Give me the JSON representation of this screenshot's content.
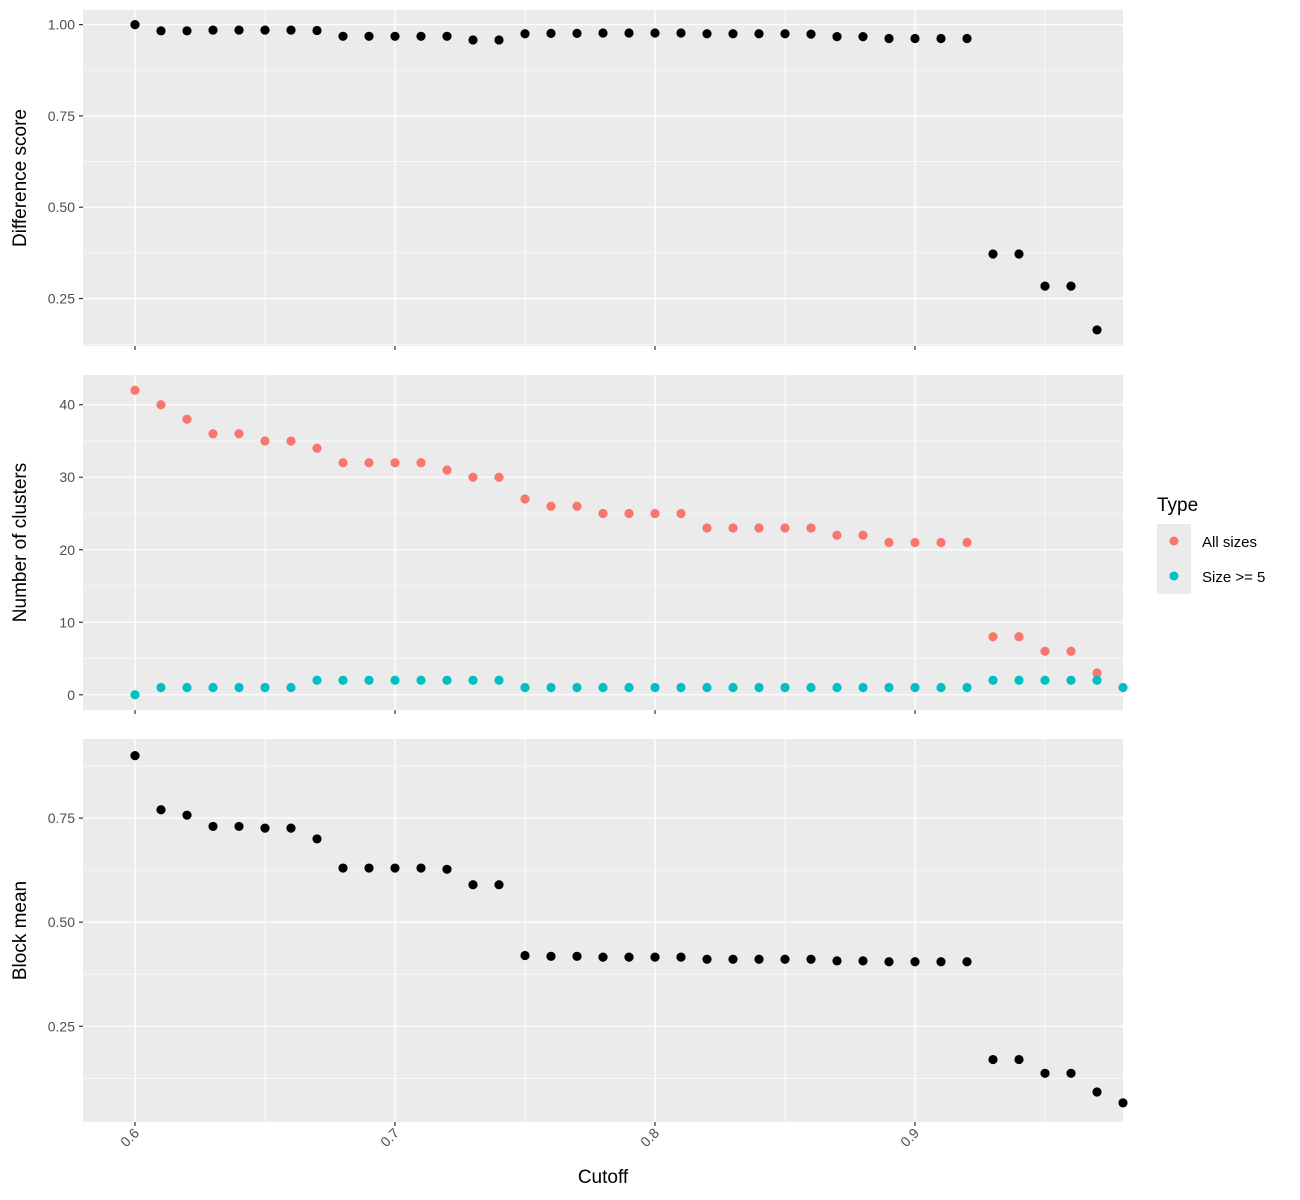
{
  "chart_data": [
    {
      "type": "scatter",
      "ylabel": "Difference score",
      "xlabel": "",
      "xlim": [
        0.58,
        0.98
      ],
      "ylim": [
        0.12,
        1.04
      ],
      "y_ticks": [
        0.25,
        0.5,
        0.75,
        1.0
      ],
      "y_tick_labels": [
        "0.25",
        "0.50",
        "0.75",
        "1.00"
      ],
      "grid": true,
      "series": [
        {
          "color": "#000000",
          "x": [
            0.6,
            0.61,
            0.62,
            0.63,
            0.64,
            0.65,
            0.66,
            0.67,
            0.68,
            0.69,
            0.7,
            0.71,
            0.72,
            0.73,
            0.74,
            0.75,
            0.76,
            0.77,
            0.78,
            0.79,
            0.8,
            0.81,
            0.82,
            0.83,
            0.84,
            0.85,
            0.86,
            0.87,
            0.88,
            0.89,
            0.9,
            0.91,
            0.92,
            0.93,
            0.94,
            0.95,
            0.96,
            0.97
          ],
          "y": [
            1.0,
            0.983,
            0.983,
            0.985,
            0.985,
            0.985,
            0.985,
            0.984,
            0.968,
            0.968,
            0.968,
            0.968,
            0.968,
            0.958,
            0.958,
            0.975,
            0.976,
            0.976,
            0.977,
            0.977,
            0.977,
            0.977,
            0.975,
            0.975,
            0.975,
            0.975,
            0.974,
            0.967,
            0.967,
            0.962,
            0.962,
            0.962,
            0.962,
            0.372,
            0.372,
            0.284,
            0.284,
            0.164
          ]
        }
      ]
    },
    {
      "type": "scatter",
      "ylabel": "Number of clusters",
      "xlabel": "",
      "xlim": [
        0.58,
        0.98
      ],
      "ylim": [
        -2.1,
        44.1
      ],
      "y_ticks": [
        0,
        10,
        20,
        30,
        40
      ],
      "y_tick_labels": [
        "0",
        "10",
        "20",
        "30",
        "40"
      ],
      "grid": true,
      "legend": {
        "title": "Type",
        "position": "right"
      },
      "series": [
        {
          "name": "All sizes",
          "color": "#F8766D",
          "x": [
            0.6,
            0.61,
            0.62,
            0.63,
            0.64,
            0.65,
            0.66,
            0.67,
            0.68,
            0.69,
            0.7,
            0.71,
            0.72,
            0.73,
            0.74,
            0.75,
            0.76,
            0.77,
            0.78,
            0.79,
            0.8,
            0.81,
            0.82,
            0.83,
            0.84,
            0.85,
            0.86,
            0.87,
            0.88,
            0.89,
            0.9,
            0.91,
            0.92,
            0.93,
            0.94,
            0.95,
            0.96,
            0.97
          ],
          "y": [
            42,
            40,
            38,
            36,
            36,
            35,
            35,
            34,
            32,
            32,
            32,
            32,
            31,
            30,
            30,
            27,
            26,
            26,
            25,
            25,
            25,
            25,
            23,
            23,
            23,
            23,
            23,
            22,
            22,
            21,
            21,
            21,
            21,
            8,
            8,
            6,
            6,
            3
          ]
        },
        {
          "name": "Size >= 5",
          "color": "#00BFC4",
          "x": [
            0.6,
            0.61,
            0.62,
            0.63,
            0.64,
            0.65,
            0.66,
            0.67,
            0.68,
            0.69,
            0.7,
            0.71,
            0.72,
            0.73,
            0.74,
            0.75,
            0.76,
            0.77,
            0.78,
            0.79,
            0.8,
            0.81,
            0.82,
            0.83,
            0.84,
            0.85,
            0.86,
            0.87,
            0.88,
            0.89,
            0.9,
            0.91,
            0.92,
            0.93,
            0.94,
            0.95,
            0.96,
            0.97,
            0.98
          ],
          "y": [
            0,
            1,
            1,
            1,
            1,
            1,
            1,
            2,
            2,
            2,
            2,
            2,
            2,
            2,
            2,
            1,
            1,
            1,
            1,
            1,
            1,
            1,
            1,
            1,
            1,
            1,
            1,
            1,
            1,
            1,
            1,
            1,
            1,
            2,
            2,
            2,
            2,
            2,
            1
          ]
        }
      ]
    },
    {
      "type": "scatter",
      "ylabel": "Block mean",
      "xlabel": "Cutoff",
      "xlim": [
        0.58,
        0.98
      ],
      "ylim": [
        0.02,
        0.94
      ],
      "x_ticks": [
        0.6,
        0.7,
        0.8,
        0.9
      ],
      "x_tick_labels": [
        "0.6",
        "0.7",
        "0.8",
        "0.9"
      ],
      "y_ticks": [
        0.25,
        0.5,
        0.75
      ],
      "y_tick_labels": [
        "0.25",
        "0.50",
        "0.75"
      ],
      "grid": true,
      "series": [
        {
          "color": "#000000",
          "x": [
            0.6,
            0.61,
            0.62,
            0.63,
            0.64,
            0.65,
            0.66,
            0.67,
            0.68,
            0.69,
            0.7,
            0.71,
            0.72,
            0.73,
            0.74,
            0.75,
            0.76,
            0.77,
            0.78,
            0.79,
            0.8,
            0.81,
            0.82,
            0.83,
            0.84,
            0.85,
            0.86,
            0.87,
            0.88,
            0.89,
            0.9,
            0.91,
            0.92,
            0.93,
            0.94,
            0.95,
            0.96,
            0.97,
            0.98
          ],
          "y": [
            0.9,
            0.77,
            0.757,
            0.73,
            0.73,
            0.726,
            0.726,
            0.7,
            0.63,
            0.63,
            0.63,
            0.63,
            0.627,
            0.59,
            0.59,
            0.42,
            0.418,
            0.418,
            0.416,
            0.416,
            0.416,
            0.416,
            0.411,
            0.411,
            0.411,
            0.411,
            0.411,
            0.407,
            0.407,
            0.405,
            0.405,
            0.405,
            0.405,
            0.17,
            0.17,
            0.137,
            0.137,
            0.092,
            0.066
          ]
        }
      ]
    }
  ]
}
